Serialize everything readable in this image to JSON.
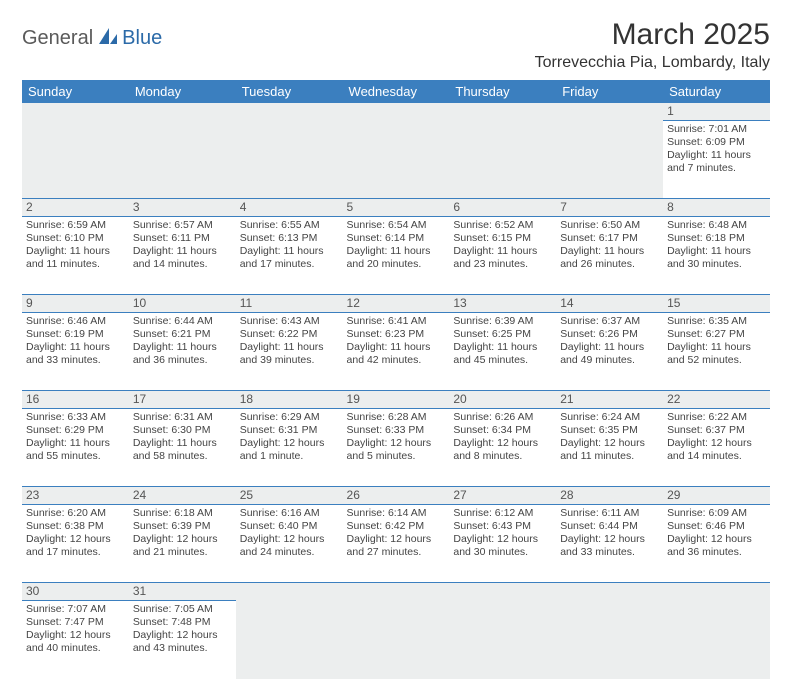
{
  "logo": {
    "part1": "General",
    "part2": "Blue"
  },
  "title": "March 2025",
  "location": "Torrevecchia Pia, Lombardy, Italy",
  "colors": {
    "header_bg": "#3b7fbf",
    "header_text": "#ffffff",
    "daynum_bg": "#eceeee",
    "border": "#3b7fbf",
    "logo_gray": "#5a5a5a",
    "logo_blue": "#2b6aa8"
  },
  "day_headers": [
    "Sunday",
    "Monday",
    "Tuesday",
    "Wednesday",
    "Thursday",
    "Friday",
    "Saturday"
  ],
  "weeks": [
    [
      null,
      null,
      null,
      null,
      null,
      null,
      {
        "n": "1",
        "sr": "Sunrise: 7:01 AM",
        "ss": "Sunset: 6:09 PM",
        "d1": "Daylight: 11 hours",
        "d2": "and 7 minutes."
      }
    ],
    [
      {
        "n": "2",
        "sr": "Sunrise: 6:59 AM",
        "ss": "Sunset: 6:10 PM",
        "d1": "Daylight: 11 hours",
        "d2": "and 11 minutes."
      },
      {
        "n": "3",
        "sr": "Sunrise: 6:57 AM",
        "ss": "Sunset: 6:11 PM",
        "d1": "Daylight: 11 hours",
        "d2": "and 14 minutes."
      },
      {
        "n": "4",
        "sr": "Sunrise: 6:55 AM",
        "ss": "Sunset: 6:13 PM",
        "d1": "Daylight: 11 hours",
        "d2": "and 17 minutes."
      },
      {
        "n": "5",
        "sr": "Sunrise: 6:54 AM",
        "ss": "Sunset: 6:14 PM",
        "d1": "Daylight: 11 hours",
        "d2": "and 20 minutes."
      },
      {
        "n": "6",
        "sr": "Sunrise: 6:52 AM",
        "ss": "Sunset: 6:15 PM",
        "d1": "Daylight: 11 hours",
        "d2": "and 23 minutes."
      },
      {
        "n": "7",
        "sr": "Sunrise: 6:50 AM",
        "ss": "Sunset: 6:17 PM",
        "d1": "Daylight: 11 hours",
        "d2": "and 26 minutes."
      },
      {
        "n": "8",
        "sr": "Sunrise: 6:48 AM",
        "ss": "Sunset: 6:18 PM",
        "d1": "Daylight: 11 hours",
        "d2": "and 30 minutes."
      }
    ],
    [
      {
        "n": "9",
        "sr": "Sunrise: 6:46 AM",
        "ss": "Sunset: 6:19 PM",
        "d1": "Daylight: 11 hours",
        "d2": "and 33 minutes."
      },
      {
        "n": "10",
        "sr": "Sunrise: 6:44 AM",
        "ss": "Sunset: 6:21 PM",
        "d1": "Daylight: 11 hours",
        "d2": "and 36 minutes."
      },
      {
        "n": "11",
        "sr": "Sunrise: 6:43 AM",
        "ss": "Sunset: 6:22 PM",
        "d1": "Daylight: 11 hours",
        "d2": "and 39 minutes."
      },
      {
        "n": "12",
        "sr": "Sunrise: 6:41 AM",
        "ss": "Sunset: 6:23 PM",
        "d1": "Daylight: 11 hours",
        "d2": "and 42 minutes."
      },
      {
        "n": "13",
        "sr": "Sunrise: 6:39 AM",
        "ss": "Sunset: 6:25 PM",
        "d1": "Daylight: 11 hours",
        "d2": "and 45 minutes."
      },
      {
        "n": "14",
        "sr": "Sunrise: 6:37 AM",
        "ss": "Sunset: 6:26 PM",
        "d1": "Daylight: 11 hours",
        "d2": "and 49 minutes."
      },
      {
        "n": "15",
        "sr": "Sunrise: 6:35 AM",
        "ss": "Sunset: 6:27 PM",
        "d1": "Daylight: 11 hours",
        "d2": "and 52 minutes."
      }
    ],
    [
      {
        "n": "16",
        "sr": "Sunrise: 6:33 AM",
        "ss": "Sunset: 6:29 PM",
        "d1": "Daylight: 11 hours",
        "d2": "and 55 minutes."
      },
      {
        "n": "17",
        "sr": "Sunrise: 6:31 AM",
        "ss": "Sunset: 6:30 PM",
        "d1": "Daylight: 11 hours",
        "d2": "and 58 minutes."
      },
      {
        "n": "18",
        "sr": "Sunrise: 6:29 AM",
        "ss": "Sunset: 6:31 PM",
        "d1": "Daylight: 12 hours",
        "d2": "and 1 minute."
      },
      {
        "n": "19",
        "sr": "Sunrise: 6:28 AM",
        "ss": "Sunset: 6:33 PM",
        "d1": "Daylight: 12 hours",
        "d2": "and 5 minutes."
      },
      {
        "n": "20",
        "sr": "Sunrise: 6:26 AM",
        "ss": "Sunset: 6:34 PM",
        "d1": "Daylight: 12 hours",
        "d2": "and 8 minutes."
      },
      {
        "n": "21",
        "sr": "Sunrise: 6:24 AM",
        "ss": "Sunset: 6:35 PM",
        "d1": "Daylight: 12 hours",
        "d2": "and 11 minutes."
      },
      {
        "n": "22",
        "sr": "Sunrise: 6:22 AM",
        "ss": "Sunset: 6:37 PM",
        "d1": "Daylight: 12 hours",
        "d2": "and 14 minutes."
      }
    ],
    [
      {
        "n": "23",
        "sr": "Sunrise: 6:20 AM",
        "ss": "Sunset: 6:38 PM",
        "d1": "Daylight: 12 hours",
        "d2": "and 17 minutes."
      },
      {
        "n": "24",
        "sr": "Sunrise: 6:18 AM",
        "ss": "Sunset: 6:39 PM",
        "d1": "Daylight: 12 hours",
        "d2": "and 21 minutes."
      },
      {
        "n": "25",
        "sr": "Sunrise: 6:16 AM",
        "ss": "Sunset: 6:40 PM",
        "d1": "Daylight: 12 hours",
        "d2": "and 24 minutes."
      },
      {
        "n": "26",
        "sr": "Sunrise: 6:14 AM",
        "ss": "Sunset: 6:42 PM",
        "d1": "Daylight: 12 hours",
        "d2": "and 27 minutes."
      },
      {
        "n": "27",
        "sr": "Sunrise: 6:12 AM",
        "ss": "Sunset: 6:43 PM",
        "d1": "Daylight: 12 hours",
        "d2": "and 30 minutes."
      },
      {
        "n": "28",
        "sr": "Sunrise: 6:11 AM",
        "ss": "Sunset: 6:44 PM",
        "d1": "Daylight: 12 hours",
        "d2": "and 33 minutes."
      },
      {
        "n": "29",
        "sr": "Sunrise: 6:09 AM",
        "ss": "Sunset: 6:46 PM",
        "d1": "Daylight: 12 hours",
        "d2": "and 36 minutes."
      }
    ],
    [
      {
        "n": "30",
        "sr": "Sunrise: 7:07 AM",
        "ss": "Sunset: 7:47 PM",
        "d1": "Daylight: 12 hours",
        "d2": "and 40 minutes."
      },
      {
        "n": "31",
        "sr": "Sunrise: 7:05 AM",
        "ss": "Sunset: 7:48 PM",
        "d1": "Daylight: 12 hours",
        "d2": "and 43 minutes."
      },
      null,
      null,
      null,
      null,
      null
    ]
  ]
}
